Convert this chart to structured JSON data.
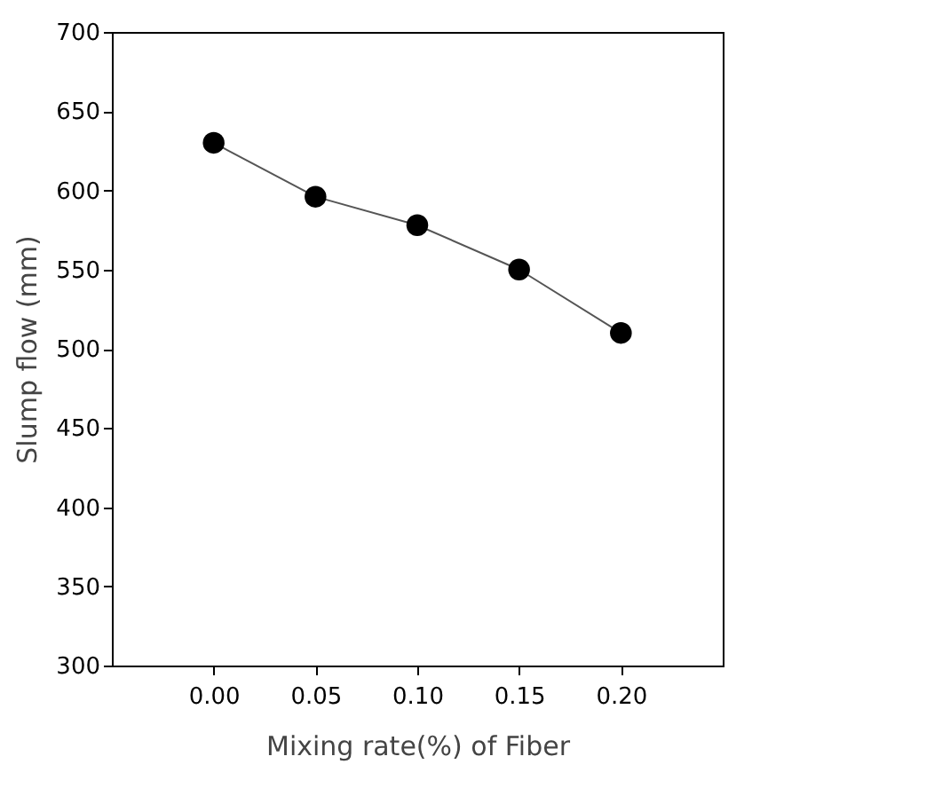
{
  "chart_data": {
    "type": "line",
    "xlabel": "Mixing rate(%) of Fiber",
    "ylabel": "Slump flow (mm)",
    "x": [
      0,
      0.05,
      0.1,
      0.15,
      0.2
    ],
    "series": [
      {
        "color": "#000000",
        "values": [
          630,
          596,
          578,
          550,
          510
        ]
      }
    ],
    "xlim": [
      -0.05,
      0.25
    ],
    "xticks": [
      {
        "value": 0,
        "label": "0.00"
      },
      {
        "value": 0.05,
        "label": "0.05"
      },
      {
        "value": 0.1,
        "label": "0.10"
      },
      {
        "value": 0.15,
        "label": "0.15"
      },
      {
        "value": 0.2,
        "label": "0.20"
      }
    ],
    "ylim": [
      300,
      700
    ],
    "yticks": [
      300,
      350,
      400,
      450,
      500,
      550,
      600,
      650,
      700
    ],
    "grid": false,
    "marker": "circle",
    "line_style": "solid"
  }
}
